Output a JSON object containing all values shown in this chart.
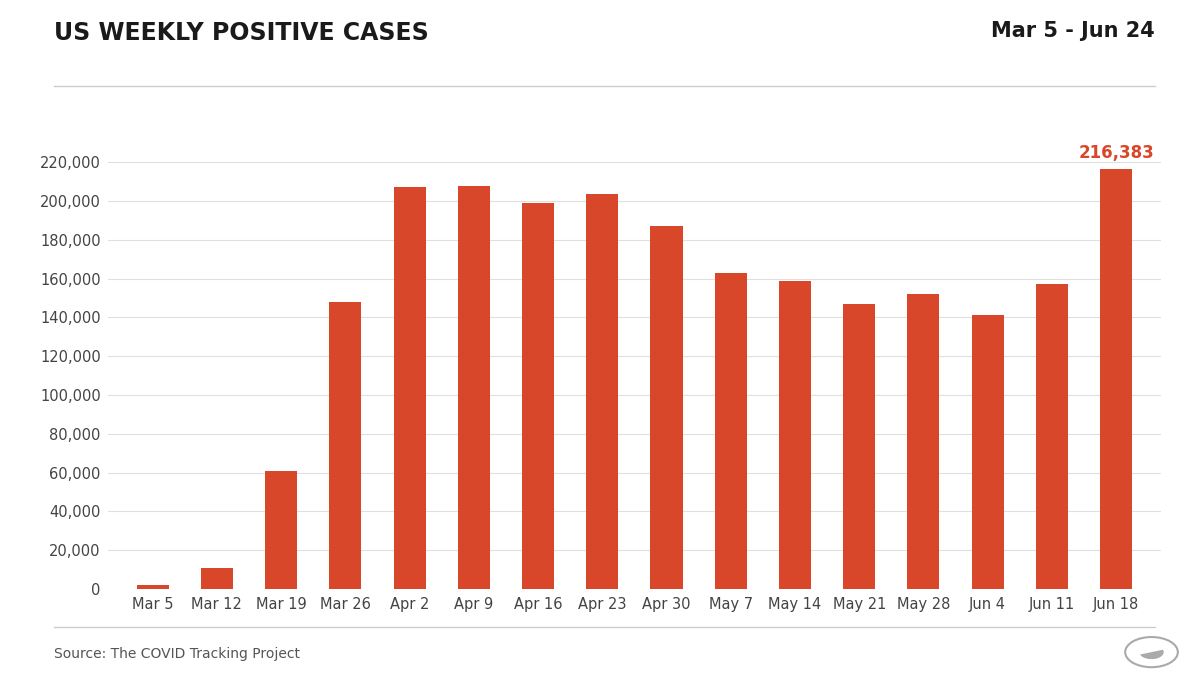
{
  "title": "US WEEKLY POSITIVE CASES",
  "date_range": "Mar 5 - Jun 24",
  "categories": [
    "Mar 5",
    "Mar 12",
    "Mar 19",
    "Mar 26",
    "Apr 2",
    "Apr 9",
    "Apr 16",
    "Apr 23",
    "Apr 30",
    "May 7",
    "May 14",
    "May 21",
    "May 28",
    "Jun 4",
    "Jun 11",
    "Jun 18"
  ],
  "values": [
    2100,
    11000,
    61000,
    148000,
    207000,
    207500,
    199000,
    203500,
    187000,
    163000,
    159000,
    147000,
    152000,
    141000,
    157000,
    216383
  ],
  "bar_color": "#d9472b",
  "highlight_color": "#d9472b",
  "highlight_index": 15,
  "highlight_label": "216,383",
  "background_color": "#ffffff",
  "grid_color": "#e0e0e0",
  "title_color": "#1a1a1a",
  "date_range_color": "#1a1a1a",
  "axis_text_color": "#444444",
  "source_text": "Source: The COVID Tracking Project",
  "ylim": [
    0,
    240000
  ],
  "yticks": [
    0,
    20000,
    40000,
    60000,
    80000,
    100000,
    120000,
    140000,
    160000,
    180000,
    200000,
    220000
  ],
  "title_fontsize": 17,
  "date_range_fontsize": 15,
  "tick_fontsize": 10.5,
  "source_fontsize": 10,
  "annotation_fontsize": 12,
  "bar_width": 0.5,
  "separator_color": "#cccccc"
}
